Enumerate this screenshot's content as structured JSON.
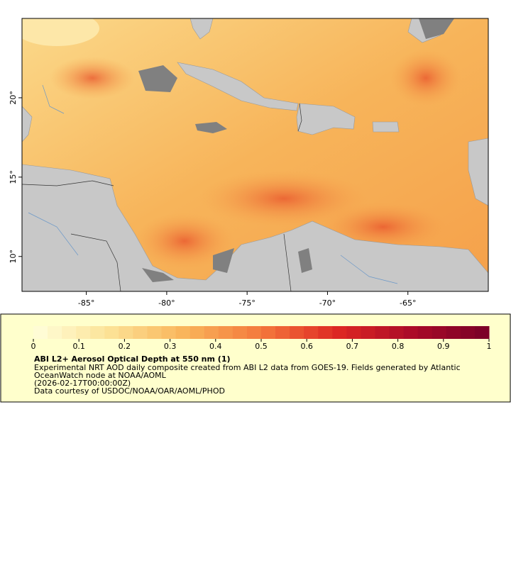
{
  "map": {
    "xlim": [
      -89,
      -60
    ],
    "ylim": [
      7.8,
      25
    ],
    "xticks": [
      {
        "value": -85,
        "label": "-85°"
      },
      {
        "value": -80,
        "label": "-80°"
      },
      {
        "value": -75,
        "label": "-75°"
      },
      {
        "value": -70,
        "label": "-70°"
      },
      {
        "value": -65,
        "label": "-65°"
      }
    ],
    "yticks": [
      {
        "value": 10,
        "label": "10°"
      },
      {
        "value": 15,
        "label": "15°"
      },
      {
        "value": 20,
        "label": "20°"
      }
    ]
  },
  "colorbar": {
    "lim": [
      0,
      1
    ],
    "ticks": [
      0,
      0.1,
      0.2,
      0.3,
      0.4,
      0.5,
      0.6,
      0.7,
      0.8,
      0.9,
      1
    ]
  },
  "legend": {
    "title": "ABI L2+ Aerosol Optical Depth at 550 nm (1)",
    "lines": [
      "Experimental NRT AOD daily composite created from ABI L2 data from GOES-19. Fields generated by Atlantic",
      "OceanWatch node at NOAA/AOML",
      "(2026-02-17T00:00:00Z)",
      "Data courtesy of USDOC/NOAA/OAR/AOML/PHOD"
    ]
  }
}
